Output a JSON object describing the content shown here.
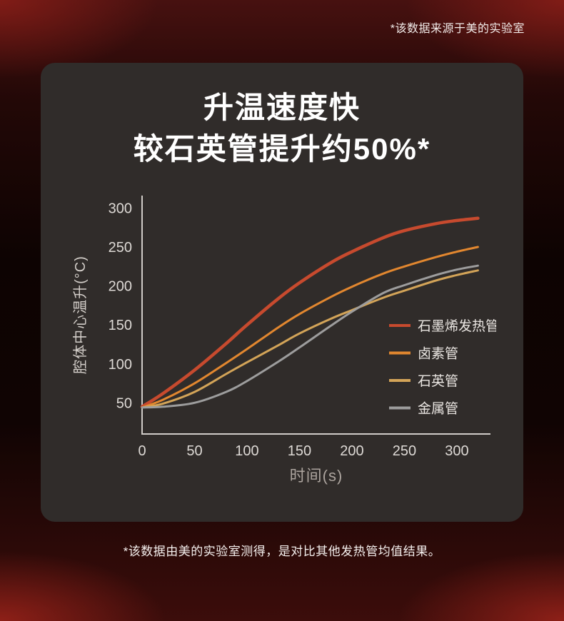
{
  "page": {
    "top_note": "*该数据来源于美的实验室",
    "bottom_note": "*该数据由美的实验室测得，是对比其他发热管均值结果。"
  },
  "card": {
    "title_line1": "升温速度快",
    "title_line2": "较石英管提升约50%*"
  },
  "chart_data": {
    "type": "line",
    "title": "升温速度快 较石英管提升约50%*",
    "xlabel": "时间(s)",
    "ylabel": "腔体中心温升(°C)",
    "xlim": [
      0,
      332
    ],
    "ylim": [
      10,
      316
    ],
    "xticks": [
      0,
      50,
      100,
      150,
      200,
      250,
      300
    ],
    "yticks": [
      50,
      100,
      150,
      200,
      250,
      300
    ],
    "grid": false,
    "legend_position": "inside-right",
    "axis_color": "#d0ccc8",
    "x": [
      0,
      20,
      50,
      80,
      100,
      130,
      150,
      180,
      200,
      230,
      250,
      280,
      300,
      320
    ],
    "series": [
      {
        "name": "石墨烯发热管",
        "color": "#c74a2e",
        "values": [
          45,
          62,
          92,
          126,
          150,
          184,
          204,
          230,
          244,
          262,
          271,
          280,
          284,
          287
        ]
      },
      {
        "name": "卤素管",
        "color": "#e2872f",
        "values": [
          44,
          54,
          75,
          101,
          119,
          147,
          164,
          186,
          199,
          216,
          225,
          237,
          244,
          250
        ]
      },
      {
        "name": "石英管",
        "color": "#d3a458",
        "values": [
          44,
          49,
          64,
          87,
          102,
          124,
          139,
          158,
          169,
          185,
          194,
          207,
          214,
          220
        ]
      },
      {
        "name": "金属管",
        "color": "#9d9d9d",
        "values": [
          44,
          45,
          50,
          64,
          78,
          103,
          121,
          149,
          167,
          191,
          201,
          214,
          221,
          226
        ]
      }
    ]
  }
}
